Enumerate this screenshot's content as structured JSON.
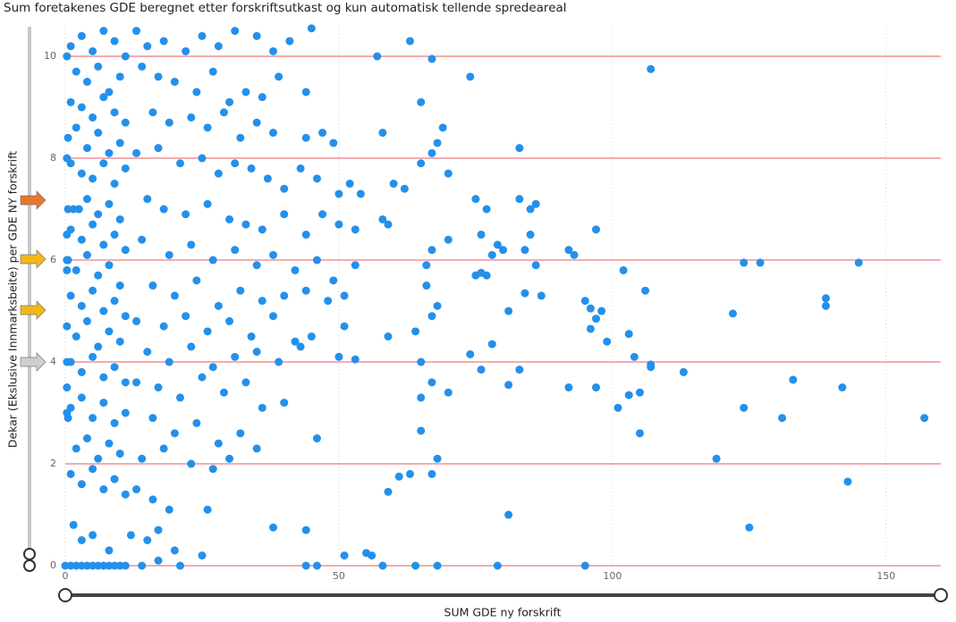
{
  "chart_data": {
    "type": "scatter",
    "title": "Sum foretakenes GDE beregnet etter forskriftsutkast og kun automatisk tellende spredeareal",
    "x_label": "SUM GDE ny forskrift",
    "y_label": "Dekar (Ekslusive Innmarksbeite) per GDE NY forskrift",
    "color": "#2490ea",
    "xlim": [
      0,
      160
    ],
    "xticks": [
      0,
      50,
      100,
      150
    ],
    "ylim": [
      0,
      10.58
    ],
    "yticks": [
      0,
      2,
      4,
      6,
      8,
      10
    ],
    "grid": true,
    "x": [
      107,
      74,
      57,
      63,
      67,
      65,
      69,
      68,
      67,
      65,
      70,
      83,
      58,
      60,
      62,
      75,
      77,
      83,
      86,
      85,
      58,
      59,
      70,
      76,
      79,
      80,
      78,
      84,
      85,
      97,
      92,
      93,
      67,
      66,
      66,
      75,
      76,
      77,
      86,
      102,
      124,
      127,
      145,
      81,
      84,
      87,
      95,
      96,
      97,
      98,
      106,
      122,
      139,
      139,
      68,
      67,
      64,
      96,
      99,
      103,
      78,
      59,
      65,
      74,
      76,
      83,
      104,
      107,
      107,
      113,
      81,
      92,
      97,
      101,
      103,
      105,
      133,
      142,
      157,
      131,
      124,
      105,
      65,
      67,
      70,
      65,
      68,
      119,
      143,
      63,
      67,
      59,
      61,
      81,
      125,
      38,
      44,
      55,
      56,
      46,
      44,
      58,
      64,
      68,
      79,
      95,
      51,
      13,
      15,
      18,
      22,
      25,
      28,
      31,
      35,
      38,
      41,
      45,
      14,
      17,
      20,
      24,
      27,
      30,
      33,
      36,
      39,
      44,
      16,
      19,
      23,
      26,
      29,
      32,
      35,
      38,
      44,
      47,
      49,
      13,
      17,
      21,
      25,
      28,
      31,
      34,
      37,
      40,
      43,
      46,
      50,
      52,
      54,
      15,
      18,
      22,
      26,
      30,
      33,
      36,
      40,
      44,
      47,
      50,
      53,
      14,
      19,
      23,
      27,
      31,
      35,
      38,
      42,
      46,
      49,
      53,
      16,
      20,
      24,
      28,
      32,
      36,
      40,
      44,
      48,
      51,
      13,
      18,
      22,
      26,
      30,
      34,
      38,
      42,
      45,
      51,
      15,
      19,
      23,
      27,
      31,
      35,
      39,
      43,
      50,
      53,
      13,
      17,
      21,
      25,
      29,
      33,
      36,
      40,
      16,
      20,
      24,
      28,
      32,
      35,
      46,
      14,
      18,
      23,
      27,
      30,
      13,
      16,
      19,
      26,
      12,
      15,
      17,
      20,
      25,
      17,
      21,
      14,
      1,
      3,
      5,
      7,
      9,
      11,
      2,
      4,
      6,
      8,
      10,
      1,
      3,
      5,
      7,
      9,
      11,
      0.5,
      2,
      4,
      6,
      8,
      10,
      1,
      3,
      5,
      7,
      9,
      11,
      0.5,
      1.5,
      2.5,
      4,
      6,
      8,
      10,
      1,
      3,
      5,
      7,
      9,
      11,
      0.5,
      2,
      4,
      6,
      8,
      10,
      1,
      3,
      5,
      7,
      9,
      11,
      0.3,
      2,
      4,
      6,
      8,
      10,
      1,
      3,
      5,
      7,
      9,
      11,
      1,
      3,
      5,
      7,
      9,
      11,
      0.5,
      2,
      4,
      6,
      8,
      10,
      1,
      3,
      5,
      7,
      9,
      11,
      1.5,
      3,
      5,
      8,
      0,
      1,
      2,
      3,
      4,
      5,
      6,
      7,
      8,
      9,
      10,
      11,
      0.3,
      0.3,
      0.3,
      0.3,
      0.3,
      0.3,
      0.3,
      0.3
    ],
    "values": [
      9.75,
      9.6,
      10,
      10.3,
      9.95,
      9.1,
      8.6,
      8.3,
      8.1,
      7.9,
      7.7,
      8.2,
      8.5,
      7.5,
      7.4,
      7.2,
      7,
      7.2,
      7.1,
      7,
      6.8,
      6.7,
      6.4,
      6.5,
      6.3,
      6.2,
      6.1,
      6.2,
      6.5,
      6.6,
      6.2,
      6.1,
      6.2,
      5.9,
      5.5,
      5.7,
      5.75,
      5.7,
      5.9,
      5.8,
      5.95,
      5.95,
      5.95,
      5,
      5.35,
      5.3,
      5.2,
      5.05,
      4.85,
      5,
      5.4,
      4.95,
      5.25,
      5.1,
      5.1,
      4.9,
      4.6,
      4.65,
      4.4,
      4.55,
      4.35,
      4.5,
      4,
      4.15,
      3.85,
      3.85,
      4.1,
      3.95,
      3.9,
      3.8,
      3.55,
      3.5,
      3.5,
      3.1,
      3.35,
      3.4,
      3.65,
      3.5,
      2.9,
      2.9,
      3.1,
      2.6,
      3.3,
      3.6,
      3.4,
      2.65,
      2.1,
      2.1,
      1.65,
      1.8,
      1.8,
      1.45,
      1.75,
      1,
      0.75,
      0.75,
      0.7,
      0.25,
      0.2,
      0,
      0,
      0,
      0,
      0,
      0,
      0,
      0.2,
      10.5,
      10.2,
      10.3,
      10.1,
      10.4,
      10.2,
      10.5,
      10.4,
      10.1,
      10.3,
      10.55,
      9.8,
      9.6,
      9.5,
      9.3,
      9.7,
      9.1,
      9.3,
      9.2,
      9.6,
      9.3,
      8.9,
      8.7,
      8.8,
      8.6,
      8.9,
      8.4,
      8.7,
      8.5,
      8.4,
      8.5,
      8.3,
      8.1,
      8.2,
      7.9,
      8,
      7.7,
      7.9,
      7.8,
      7.6,
      7.4,
      7.8,
      7.6,
      7.3,
      7.5,
      7.3,
      7.2,
      7,
      6.9,
      7.1,
      6.8,
      6.7,
      6.6,
      6.9,
      6.5,
      6.9,
      6.7,
      6.6,
      6.4,
      6.1,
      6.3,
      6,
      6.2,
      5.9,
      6.1,
      5.8,
      6,
      5.6,
      5.9,
      5.5,
      5.3,
      5.6,
      5.1,
      5.4,
      5.2,
      5.3,
      5.4,
      5.2,
      5.3,
      4.8,
      4.7,
      4.9,
      4.6,
      4.8,
      4.5,
      4.9,
      4.4,
      4.5,
      4.7,
      4.2,
      4,
      4.3,
      3.9,
      4.1,
      4.2,
      4,
      4.3,
      4.1,
      4.05,
      3.6,
      3.5,
      3.3,
      3.7,
      3.4,
      3.6,
      3.1,
      3.2,
      2.9,
      2.6,
      2.8,
      2.4,
      2.6,
      2.3,
      2.5,
      2.1,
      2.3,
      2,
      1.9,
      2.1,
      1.5,
      1.3,
      1.1,
      1.1,
      0.6,
      0.5,
      0.7,
      0.3,
      0.2,
      0.1,
      0,
      0,
      10.2,
      10.4,
      10.1,
      10.5,
      10.3,
      10,
      9.7,
      9.5,
      9.8,
      9.3,
      9.6,
      9.1,
      9,
      8.8,
      9.2,
      8.9,
      8.7,
      8.4,
      8.6,
      8.2,
      8.5,
      8.1,
      8.3,
      7.9,
      7.7,
      7.6,
      7.9,
      7.5,
      7.8,
      7,
      7,
      7,
      7.2,
      6.9,
      7.1,
      6.8,
      6.6,
      6.4,
      6.7,
      6.3,
      6.5,
      6.2,
      6,
      5.8,
      6.1,
      5.7,
      5.9,
      5.5,
      5.3,
      5.1,
      5.4,
      5,
      5.2,
      4.9,
      4.7,
      4.5,
      4.8,
      4.3,
      4.6,
      4.4,
      4,
      3.8,
      4.1,
      3.7,
      3.9,
      3.6,
      3.1,
      3.3,
      2.9,
      3.2,
      2.8,
      3,
      2.9,
      2.3,
      2.5,
      2.1,
      2.4,
      2.2,
      1.8,
      1.6,
      1.9,
      1.5,
      1.7,
      1.4,
      0.8,
      0.5,
      0.6,
      0.3,
      0,
      0,
      0,
      0,
      0,
      0,
      0,
      0,
      0,
      0,
      0,
      0,
      10,
      8,
      6,
      4,
      3,
      5.8,
      3.5,
      6.5
    ]
  }
}
